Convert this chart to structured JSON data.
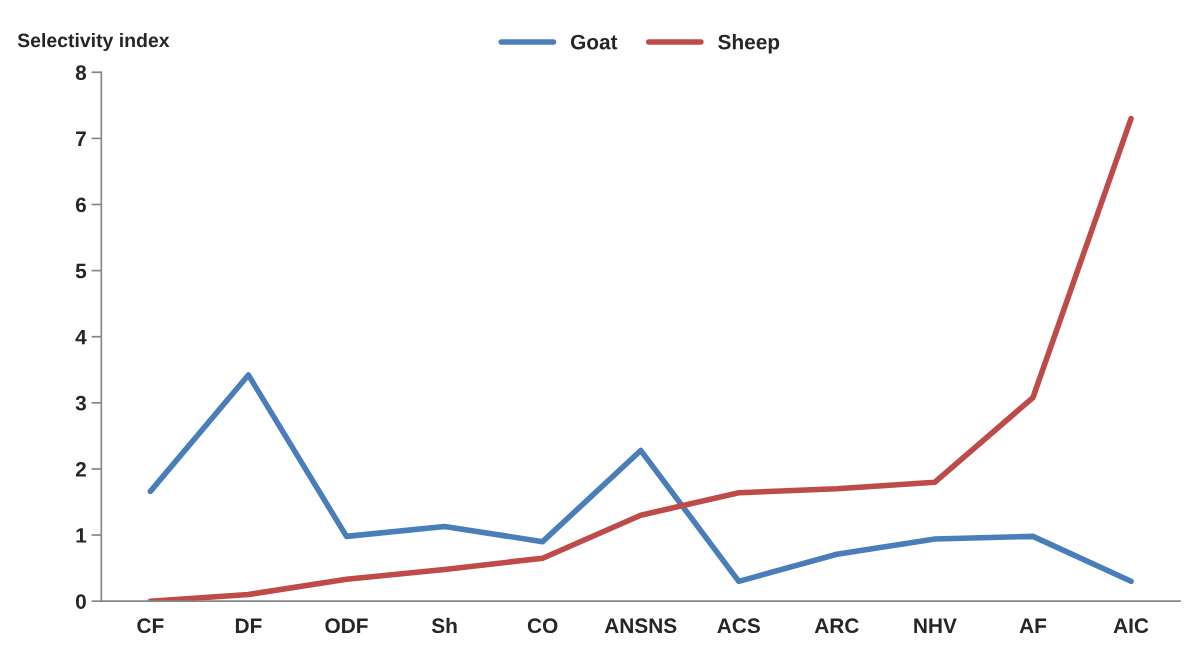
{
  "chart_data": {
    "type": "line",
    "ylabel": "Selectivity index",
    "categories": [
      "CF",
      "DF",
      "ODF",
      "Sh",
      "CO",
      "ANSNS",
      "ACS",
      "ARC",
      "NHV",
      "AF",
      "AIC"
    ],
    "series": [
      {
        "name": "Goat",
        "color": "#4a7ebb",
        "values": [
          1.66,
          3.42,
          0.98,
          1.13,
          0.9,
          2.28,
          0.3,
          0.71,
          0.94,
          0.98,
          0.3
        ]
      },
      {
        "name": "Sheep",
        "color": "#be4b48",
        "values": [
          0,
          0.1,
          0.33,
          0.48,
          0.65,
          1.3,
          1.64,
          1.7,
          1.8,
          3.08,
          7.3
        ]
      }
    ],
    "ylim": [
      0,
      8
    ],
    "yticks": [
      0,
      1,
      2,
      3,
      4,
      5,
      6,
      7,
      8
    ],
    "grid": false,
    "legend": "top",
    "marker": "none",
    "line_style": "solid"
  }
}
